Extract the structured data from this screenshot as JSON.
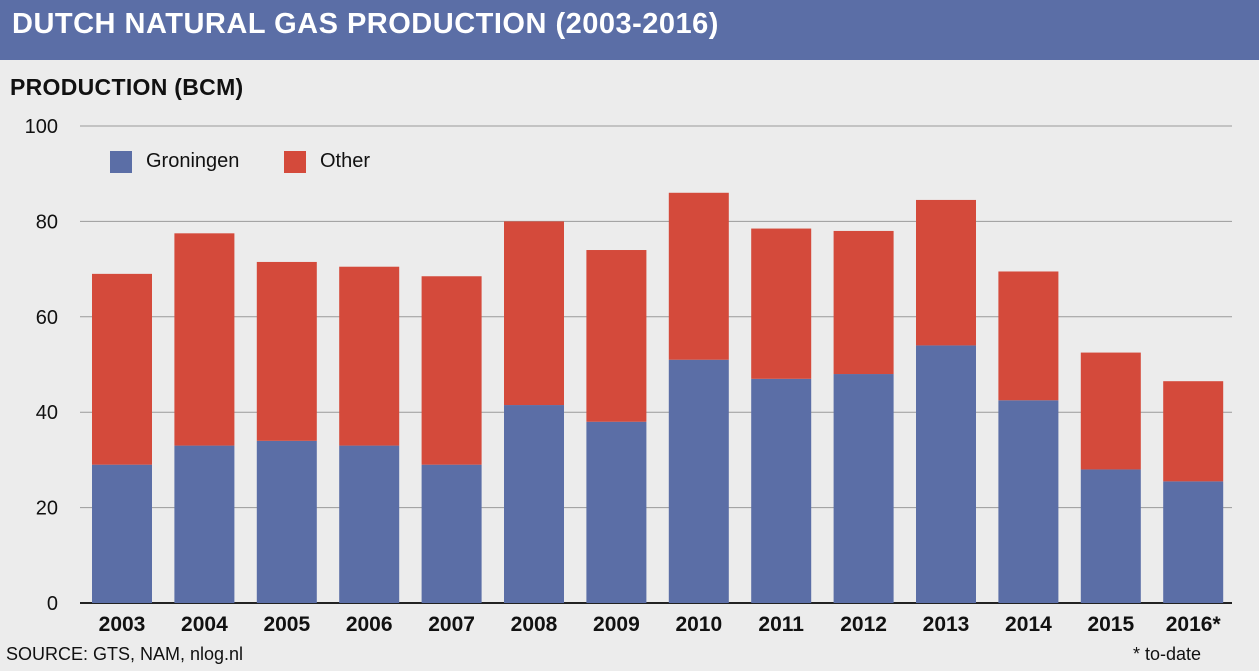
{
  "header": {
    "title": "DUTCH NATURAL GAS PRODUCTION (2003-2016)"
  },
  "chart_data": {
    "type": "bar",
    "stacked": true,
    "title": "DUTCH NATURAL GAS PRODUCTION (2003-2016)",
    "ylabel": "PRODUCTION (BCM)",
    "xlabel": "",
    "ylim": [
      0,
      100
    ],
    "yticks": [
      "0",
      "20",
      "40",
      "60",
      "80",
      "100"
    ],
    "categories": [
      "2003",
      "2004",
      "2005",
      "2006",
      "2007",
      "2008",
      "2009",
      "2010",
      "2011",
      "2012",
      "2013",
      "2014",
      "2015",
      "2016*"
    ],
    "series": [
      {
        "name": "Groningen",
        "color": "#5b6ea6",
        "values": [
          29,
          33,
          34,
          33,
          29,
          41.5,
          38,
          51,
          47,
          48,
          54,
          42.5,
          28,
          25.5
        ]
      },
      {
        "name": "Other",
        "color": "#d44a3b",
        "values": [
          40,
          44.5,
          37.5,
          37.5,
          39.5,
          38.5,
          36,
          35,
          31.5,
          30,
          30.5,
          27,
          24.5,
          21
        ]
      }
    ],
    "grid": true,
    "legend_position": "top-left"
  },
  "legend": {
    "groningen": "Groningen",
    "other": "Other"
  },
  "footer": {
    "source": "SOURCE: GTS, NAM, nlog.nl",
    "note": "* to-date"
  }
}
